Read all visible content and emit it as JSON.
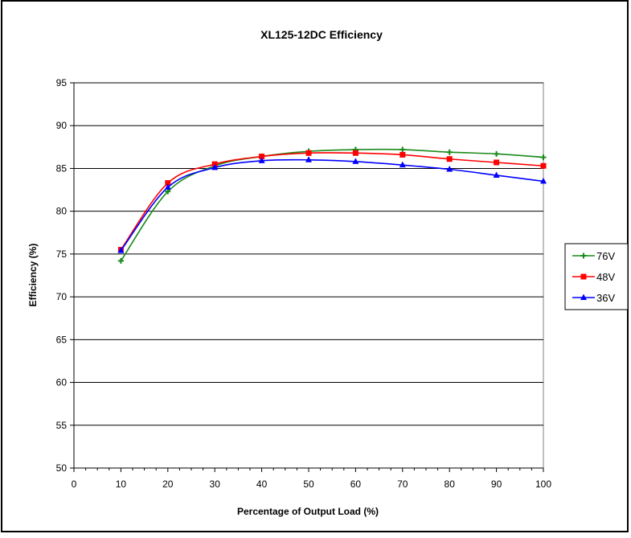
{
  "chart_data": {
    "type": "line",
    "title": "XL125-12DC  Efficiency",
    "xlabel": "Percentage of Output Load (%)",
    "ylabel": "Efficiency (%)",
    "xlim": [
      0,
      100
    ],
    "ylim": [
      50,
      95
    ],
    "x_ticks": [
      "0",
      "10",
      "20",
      "30",
      "40",
      "50",
      "60",
      "70",
      "80",
      "90",
      "100"
    ],
    "y_ticks": [
      "50",
      "55",
      "60",
      "65",
      "70",
      "75",
      "80",
      "85",
      "90",
      "95"
    ],
    "grid": "horizontal",
    "legend_position": "right",
    "x": [
      10,
      20,
      30,
      40,
      50,
      60,
      70,
      80,
      90,
      100
    ],
    "series": [
      {
        "name": "76V",
        "color": "#1a8a1a",
        "marker": "plus",
        "values": [
          74.2,
          82.3,
          85.3,
          86.4,
          87.0,
          87.2,
          87.2,
          86.9,
          86.7,
          86.3
        ]
      },
      {
        "name": "48V",
        "color": "#ff0000",
        "marker": "square",
        "values": [
          75.5,
          83.3,
          85.5,
          86.4,
          86.8,
          86.8,
          86.6,
          86.1,
          85.7,
          85.3
        ]
      },
      {
        "name": "36V",
        "color": "#0000ff",
        "marker": "triangle",
        "values": [
          75.4,
          82.8,
          85.1,
          85.9,
          86.0,
          85.8,
          85.4,
          84.9,
          84.2,
          83.5
        ]
      }
    ]
  }
}
